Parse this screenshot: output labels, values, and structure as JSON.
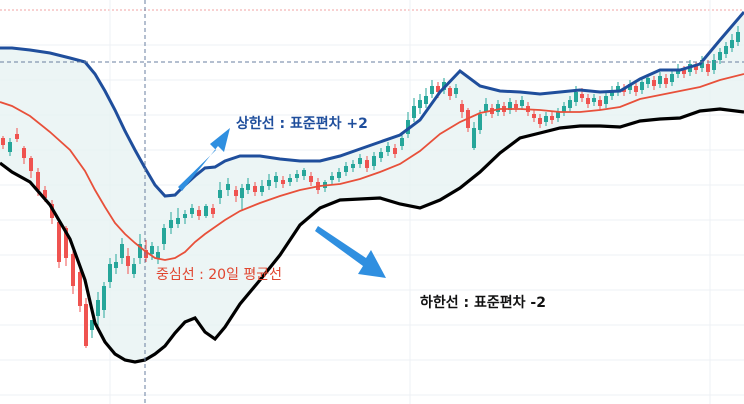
{
  "chart_data": {
    "type": "line",
    "title": "",
    "xlabel": "",
    "ylabel": "",
    "grid": true,
    "colors": {
      "upper_band": "#1f4e9c",
      "middle_band": "#e8503a",
      "lower_band": "#000000",
      "band_fill": "#e6f2f1",
      "candle_up": "#26a69a",
      "candle_down": "#ef5350",
      "guide": "#6a7fa0",
      "arrow": "#2f8fe0"
    },
    "annotations": {
      "upper": "상한선 : 표준편차 +2",
      "middle": "중심선 : 20일 평균선",
      "lower": "하한선 : 표준편차 -2"
    },
    "ylim": [
      0,
      404
    ],
    "x": [
      0,
      12,
      30,
      50,
      70,
      85,
      95,
      105,
      115,
      125,
      135,
      145,
      155,
      165,
      175,
      185,
      195,
      205,
      215,
      225,
      240,
      260,
      280,
      300,
      320,
      340,
      360,
      380,
      400,
      420,
      440,
      460,
      480,
      500,
      520,
      540,
      560,
      580,
      600,
      620,
      640,
      660,
      680,
      700,
      720,
      744
    ],
    "series": [
      {
        "name": "upper",
        "values": [
          356,
          356,
          354,
          351,
          346,
          342,
          330,
          313,
          294,
          273,
          254,
          236,
          219,
          208,
          209,
          219,
          228,
          236,
          237,
          243,
          248,
          248,
          245,
          243,
          243,
          248,
          255,
          262,
          269,
          284,
          312,
          333,
          318,
          313,
          312,
          310,
          312,
          314,
          312,
          313,
          325,
          334,
          334,
          340,
          364,
          392
        ]
      },
      {
        "name": "middle",
        "values": [
          302,
          298,
          288,
          272,
          254,
          233,
          214,
          197,
          181,
          170,
          161,
          153,
          146,
          144,
          146,
          152,
          162,
          170,
          177,
          184,
          193,
          201,
          208,
          214,
          218,
          220,
          225,
          232,
          240,
          253,
          270,
          282,
          291,
          295,
          295,
          294,
          292,
          292,
          294,
          297,
          305,
          309,
          313,
          317,
          324,
          330
        ]
      },
      {
        "name": "lower",
        "values": [
          241,
          232,
          222,
          199,
          165,
          124,
          81,
          62,
          50,
          44,
          42,
          44,
          50,
          58,
          71,
          82,
          86,
          72,
          65,
          77,
          100,
          124,
          149,
          179,
          196,
          204,
          205,
          206,
          200,
          196,
          204,
          216,
          232,
          251,
          266,
          271,
          276,
          278,
          278,
          277,
          283,
          285,
          286,
          293,
          295,
          292
        ]
      }
    ],
    "candles": [
      {
        "x": 3,
        "o": 266,
        "c": 259,
        "h": 268,
        "l": 255
      },
      {
        "x": 10,
        "o": 252,
        "c": 262,
        "h": 266,
        "l": 248
      },
      {
        "x": 17,
        "o": 270,
        "c": 265,
        "h": 276,
        "l": 262
      },
      {
        "x": 24,
        "o": 256,
        "c": 246,
        "h": 258,
        "l": 240
      },
      {
        "x": 31,
        "o": 246,
        "c": 233,
        "h": 248,
        "l": 226
      },
      {
        "x": 38,
        "o": 232,
        "c": 214,
        "h": 236,
        "l": 208
      },
      {
        "x": 45,
        "o": 214,
        "c": 206,
        "h": 218,
        "l": 202
      },
      {
        "x": 52,
        "o": 200,
        "c": 186,
        "h": 204,
        "l": 180
      },
      {
        "x": 59,
        "o": 182,
        "c": 142,
        "h": 186,
        "l": 136
      },
      {
        "x": 66,
        "o": 176,
        "c": 146,
        "h": 178,
        "l": 138
      },
      {
        "x": 73,
        "o": 150,
        "c": 118,
        "h": 156,
        "l": 110
      },
      {
        "x": 80,
        "o": 132,
        "c": 98,
        "h": 136,
        "l": 92
      },
      {
        "x": 86,
        "o": 100,
        "c": 58,
        "h": 106,
        "l": 56
      },
      {
        "x": 92,
        "o": 74,
        "c": 84,
        "h": 80,
        "l": 66
      },
      {
        "x": 98,
        "o": 88,
        "c": 104,
        "h": 112,
        "l": 74
      },
      {
        "x": 104,
        "o": 94,
        "c": 118,
        "h": 122,
        "l": 86
      },
      {
        "x": 110,
        "o": 122,
        "c": 140,
        "h": 146,
        "l": 116
      },
      {
        "x": 116,
        "o": 136,
        "c": 142,
        "h": 150,
        "l": 130
      },
      {
        "x": 122,
        "o": 146,
        "c": 160,
        "h": 166,
        "l": 140
      },
      {
        "x": 128,
        "o": 148,
        "c": 138,
        "h": 156,
        "l": 130
      },
      {
        "x": 134,
        "o": 130,
        "c": 140,
        "h": 146,
        "l": 126
      },
      {
        "x": 140,
        "o": 146,
        "c": 160,
        "h": 170,
        "l": 140
      },
      {
        "x": 146,
        "o": 154,
        "c": 146,
        "h": 164,
        "l": 142
      },
      {
        "x": 152,
        "o": 150,
        "c": 158,
        "h": 162,
        "l": 144
      },
      {
        "x": 158,
        "o": 146,
        "c": 152,
        "h": 158,
        "l": 140
      },
      {
        "x": 164,
        "o": 160,
        "c": 176,
        "h": 180,
        "l": 154
      },
      {
        "x": 171,
        "o": 176,
        "c": 184,
        "h": 192,
        "l": 170
      },
      {
        "x": 178,
        "o": 180,
        "c": 186,
        "h": 196,
        "l": 176
      },
      {
        "x": 185,
        "o": 186,
        "c": 190,
        "h": 194,
        "l": 180
      },
      {
        "x": 192,
        "o": 190,
        "c": 196,
        "h": 200,
        "l": 186
      },
      {
        "x": 199,
        "o": 194,
        "c": 188,
        "h": 198,
        "l": 184
      },
      {
        "x": 206,
        "o": 188,
        "c": 198,
        "h": 200,
        "l": 186
      },
      {
        "x": 213,
        "o": 196,
        "c": 190,
        "h": 200,
        "l": 186
      },
      {
        "x": 220,
        "o": 206,
        "c": 214,
        "h": 222,
        "l": 200
      },
      {
        "x": 228,
        "o": 214,
        "c": 220,
        "h": 226,
        "l": 208
      },
      {
        "x": 236,
        "o": 214,
        "c": 208,
        "h": 218,
        "l": 202
      },
      {
        "x": 242,
        "o": 206,
        "c": 216,
        "h": 220,
        "l": 194
      },
      {
        "x": 248,
        "o": 214,
        "c": 220,
        "h": 226,
        "l": 210
      },
      {
        "x": 255,
        "o": 218,
        "c": 212,
        "h": 222,
        "l": 208
      },
      {
        "x": 262,
        "o": 212,
        "c": 218,
        "h": 224,
        "l": 208
      },
      {
        "x": 269,
        "o": 218,
        "c": 224,
        "h": 230,
        "l": 214
      },
      {
        "x": 276,
        "o": 222,
        "c": 228,
        "h": 232,
        "l": 216
      },
      {
        "x": 283,
        "o": 224,
        "c": 220,
        "h": 228,
        "l": 216
      },
      {
        "x": 290,
        "o": 222,
        "c": 226,
        "h": 230,
        "l": 218
      },
      {
        "x": 297,
        "o": 226,
        "c": 230,
        "h": 234,
        "l": 222
      },
      {
        "x": 304,
        "o": 228,
        "c": 234,
        "h": 236,
        "l": 224
      },
      {
        "x": 311,
        "o": 228,
        "c": 222,
        "h": 232,
        "l": 218
      },
      {
        "x": 318,
        "o": 222,
        "c": 214,
        "h": 226,
        "l": 210
      },
      {
        "x": 325,
        "o": 216,
        "c": 222,
        "h": 224,
        "l": 212
      },
      {
        "x": 332,
        "o": 224,
        "c": 228,
        "h": 232,
        "l": 220
      },
      {
        "x": 339,
        "o": 226,
        "c": 232,
        "h": 236,
        "l": 222
      },
      {
        "x": 346,
        "o": 232,
        "c": 238,
        "h": 242,
        "l": 228
      },
      {
        "x": 353,
        "o": 236,
        "c": 240,
        "h": 244,
        "l": 232
      },
      {
        "x": 360,
        "o": 240,
        "c": 246,
        "h": 250,
        "l": 236
      },
      {
        "x": 367,
        "o": 244,
        "c": 236,
        "h": 248,
        "l": 232
      },
      {
        "x": 374,
        "o": 238,
        "c": 248,
        "h": 252,
        "l": 234
      },
      {
        "x": 381,
        "o": 246,
        "c": 252,
        "h": 256,
        "l": 242
      },
      {
        "x": 388,
        "o": 252,
        "c": 258,
        "h": 262,
        "l": 248
      },
      {
        "x": 395,
        "o": 256,
        "c": 250,
        "h": 260,
        "l": 246
      },
      {
        "x": 402,
        "o": 258,
        "c": 266,
        "h": 272,
        "l": 254
      },
      {
        "x": 408,
        "o": 270,
        "c": 284,
        "h": 292,
        "l": 266
      },
      {
        "x": 414,
        "o": 286,
        "c": 298,
        "h": 306,
        "l": 282
      },
      {
        "x": 420,
        "o": 296,
        "c": 304,
        "h": 310,
        "l": 290
      },
      {
        "x": 426,
        "o": 300,
        "c": 308,
        "h": 316,
        "l": 296
      },
      {
        "x": 432,
        "o": 310,
        "c": 318,
        "h": 324,
        "l": 306
      },
      {
        "x": 438,
        "o": 318,
        "c": 312,
        "h": 322,
        "l": 306
      },
      {
        "x": 444,
        "o": 314,
        "c": 322,
        "h": 326,
        "l": 310
      },
      {
        "x": 450,
        "o": 316,
        "c": 308,
        "h": 318,
        "l": 304
      },
      {
        "x": 456,
        "o": 310,
        "c": 316,
        "h": 320,
        "l": 306
      },
      {
        "x": 462,
        "o": 300,
        "c": 292,
        "h": 304,
        "l": 286
      },
      {
        "x": 468,
        "o": 294,
        "c": 276,
        "h": 296,
        "l": 272
      },
      {
        "x": 474,
        "o": 256,
        "c": 276,
        "h": 282,
        "l": 254
      },
      {
        "x": 480,
        "o": 274,
        "c": 290,
        "h": 294,
        "l": 270
      },
      {
        "x": 486,
        "o": 292,
        "c": 300,
        "h": 306,
        "l": 288
      },
      {
        "x": 492,
        "o": 296,
        "c": 290,
        "h": 300,
        "l": 286
      },
      {
        "x": 498,
        "o": 292,
        "c": 300,
        "h": 304,
        "l": 288
      },
      {
        "x": 504,
        "o": 298,
        "c": 292,
        "h": 302,
        "l": 288
      },
      {
        "x": 510,
        "o": 294,
        "c": 302,
        "h": 306,
        "l": 290
      },
      {
        "x": 516,
        "o": 300,
        "c": 296,
        "h": 304,
        "l": 292
      },
      {
        "x": 522,
        "o": 298,
        "c": 304,
        "h": 308,
        "l": 294
      },
      {
        "x": 528,
        "o": 298,
        "c": 292,
        "h": 302,
        "l": 288
      },
      {
        "x": 534,
        "o": 290,
        "c": 286,
        "h": 294,
        "l": 282
      },
      {
        "x": 540,
        "o": 286,
        "c": 280,
        "h": 290,
        "l": 276
      },
      {
        "x": 546,
        "o": 282,
        "c": 288,
        "h": 292,
        "l": 278
      },
      {
        "x": 552,
        "o": 288,
        "c": 284,
        "h": 292,
        "l": 280
      },
      {
        "x": 558,
        "o": 286,
        "c": 292,
        "h": 296,
        "l": 282
      },
      {
        "x": 564,
        "o": 292,
        "c": 298,
        "h": 302,
        "l": 288
      },
      {
        "x": 570,
        "o": 296,
        "c": 304,
        "h": 308,
        "l": 292
      },
      {
        "x": 576,
        "o": 302,
        "c": 312,
        "h": 318,
        "l": 298
      },
      {
        "x": 582,
        "o": 310,
        "c": 306,
        "h": 316,
        "l": 302
      },
      {
        "x": 588,
        "o": 306,
        "c": 300,
        "h": 310,
        "l": 296
      },
      {
        "x": 594,
        "o": 302,
        "c": 306,
        "h": 310,
        "l": 298
      },
      {
        "x": 600,
        "o": 304,
        "c": 298,
        "h": 308,
        "l": 294
      },
      {
        "x": 606,
        "o": 300,
        "c": 308,
        "h": 312,
        "l": 296
      },
      {
        "x": 612,
        "o": 308,
        "c": 314,
        "h": 318,
        "l": 304
      },
      {
        "x": 618,
        "o": 312,
        "c": 318,
        "h": 322,
        "l": 308
      },
      {
        "x": 624,
        "o": 316,
        "c": 312,
        "h": 320,
        "l": 308
      },
      {
        "x": 630,
        "o": 314,
        "c": 320,
        "h": 324,
        "l": 310
      },
      {
        "x": 636,
        "o": 318,
        "c": 312,
        "h": 322,
        "l": 308
      },
      {
        "x": 642,
        "o": 314,
        "c": 322,
        "h": 326,
        "l": 310
      },
      {
        "x": 648,
        "o": 320,
        "c": 326,
        "h": 330,
        "l": 316
      },
      {
        "x": 654,
        "o": 324,
        "c": 318,
        "h": 328,
        "l": 314
      },
      {
        "x": 660,
        "o": 320,
        "c": 328,
        "h": 332,
        "l": 316
      },
      {
        "x": 666,
        "o": 326,
        "c": 320,
        "h": 330,
        "l": 316
      },
      {
        "x": 672,
        "o": 322,
        "c": 330,
        "h": 334,
        "l": 318
      },
      {
        "x": 678,
        "o": 330,
        "c": 334,
        "h": 340,
        "l": 326
      },
      {
        "x": 684,
        "o": 334,
        "c": 330,
        "h": 338,
        "l": 326
      },
      {
        "x": 690,
        "o": 332,
        "c": 340,
        "h": 344,
        "l": 328
      },
      {
        "x": 696,
        "o": 338,
        "c": 334,
        "h": 342,
        "l": 330
      },
      {
        "x": 702,
        "o": 336,
        "c": 344,
        "h": 348,
        "l": 332
      },
      {
        "x": 708,
        "o": 340,
        "c": 332,
        "h": 344,
        "l": 328
      },
      {
        "x": 714,
        "o": 334,
        "c": 344,
        "h": 350,
        "l": 330
      },
      {
        "x": 720,
        "o": 344,
        "c": 352,
        "h": 356,
        "l": 340
      },
      {
        "x": 726,
        "o": 350,
        "c": 358,
        "h": 362,
        "l": 346
      },
      {
        "x": 732,
        "o": 356,
        "c": 364,
        "h": 370,
        "l": 352
      },
      {
        "x": 738,
        "o": 362,
        "c": 372,
        "h": 378,
        "l": 358
      }
    ]
  }
}
